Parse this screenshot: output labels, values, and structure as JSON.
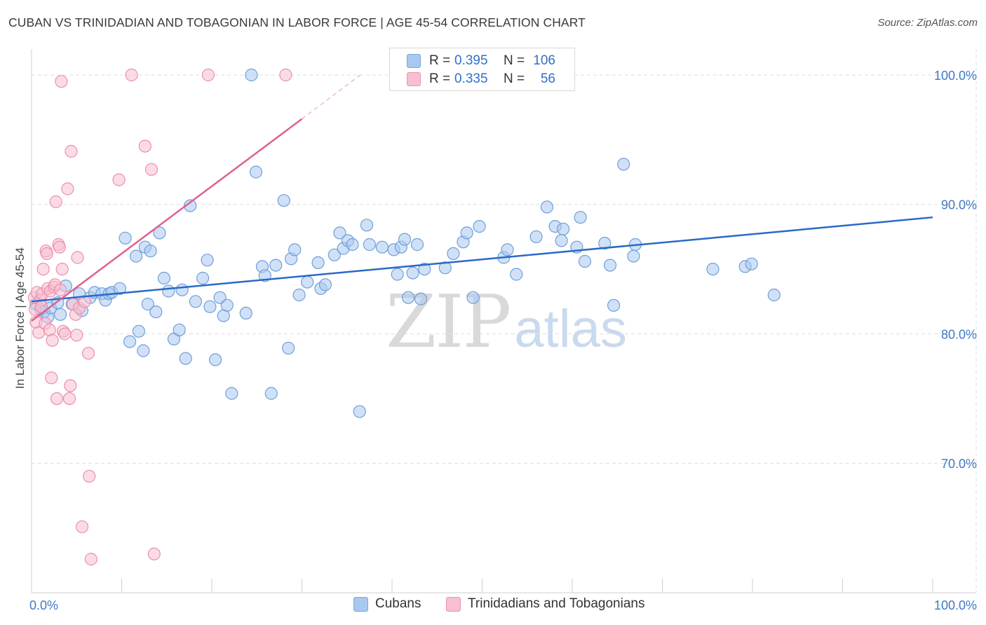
{
  "title": "CUBAN VS TRINIDADIAN AND TOBAGONIAN IN LABOR FORCE | AGE 45-54 CORRELATION CHART",
  "source": "Source: ZipAtlas.com",
  "watermark": {
    "zip": "ZIP",
    "atlas": "atlas"
  },
  "stats": [
    {
      "r_label": "R =",
      "r_value": "0.395",
      "n_label": "N =",
      "n_value": "106",
      "color": "#a9c8f0",
      "border": "#7aa6dd"
    },
    {
      "r_label": "R =",
      "r_value": "0.335",
      "n_label": "N =",
      "n_value": "56",
      "color": "#f7bfd0",
      "border": "#eb94b1"
    }
  ],
  "colors": {
    "blue_fill": "#a9c8f0",
    "blue_edge": "#6f9fd8",
    "blue_line": "#2a6ac6",
    "pink_fill": "#f7bfd0",
    "pink_edge": "#ea8fae",
    "pink_line": "#e0608e",
    "grid": "#dedede",
    "tick_text": "#3f78c8"
  },
  "chart_data": {
    "type": "scatter",
    "title": "CUBAN VS TRINIDADIAN AND TOBAGONIAN IN LABOR FORCE | AGE 45-54 CORRELATION CHART",
    "xlabel": "",
    "ylabel": "In Labor Force | Age 45-54",
    "xlim": [
      0,
      100
    ],
    "ylim": [
      60,
      102
    ],
    "x_tick_labels": [
      "0.0%",
      "100.0%"
    ],
    "y_ticks": [
      70,
      80,
      90,
      100
    ],
    "y_tick_labels": [
      "70.0%",
      "80.0%",
      "90.0%",
      "100.0%"
    ],
    "grid": true,
    "legend": "bottom-center",
    "series": [
      {
        "name": "Cubans",
        "points": [
          [
            0.5,
            82.3
          ],
          [
            1.0,
            81.9
          ],
          [
            1.4,
            81.7
          ],
          [
            1.8,
            81.3
          ],
          [
            2.1,
            82.0
          ],
          [
            2.9,
            82.4
          ],
          [
            3.2,
            81.5
          ],
          [
            3.8,
            83.7
          ],
          [
            4.5,
            82.3
          ],
          [
            5.6,
            81.8
          ],
          [
            5.3,
            83.1
          ],
          [
            6.5,
            82.8
          ],
          [
            7.0,
            83.2
          ],
          [
            7.8,
            83.1
          ],
          [
            8.2,
            82.6
          ],
          [
            8.6,
            83.1
          ],
          [
            8.9,
            83.2
          ],
          [
            9.8,
            83.5
          ],
          [
            10.4,
            87.4
          ],
          [
            10.9,
            79.4
          ],
          [
            11.6,
            86.0
          ],
          [
            11.9,
            80.2
          ],
          [
            12.4,
            78.7
          ],
          [
            12.6,
            86.7
          ],
          [
            12.9,
            82.3
          ],
          [
            13.2,
            86.4
          ],
          [
            13.8,
            81.7
          ],
          [
            14.2,
            87.8
          ],
          [
            14.7,
            84.3
          ],
          [
            15.2,
            83.3
          ],
          [
            15.8,
            79.6
          ],
          [
            16.4,
            80.3
          ],
          [
            16.7,
            83.4
          ],
          [
            17.1,
            78.1
          ],
          [
            17.6,
            89.9
          ],
          [
            18.2,
            82.5
          ],
          [
            19.0,
            84.3
          ],
          [
            19.5,
            85.7
          ],
          [
            19.8,
            82.1
          ],
          [
            20.4,
            78.0
          ],
          [
            20.9,
            82.8
          ],
          [
            21.3,
            81.4
          ],
          [
            21.7,
            82.2
          ],
          [
            22.2,
            75.4
          ],
          [
            23.8,
            81.6
          ],
          [
            24.4,
            100.0
          ],
          [
            24.9,
            92.5
          ],
          [
            25.6,
            85.2
          ],
          [
            25.9,
            84.5
          ],
          [
            26.6,
            75.4
          ],
          [
            27.1,
            85.3
          ],
          [
            28.0,
            90.3
          ],
          [
            28.5,
            78.9
          ],
          [
            28.8,
            85.8
          ],
          [
            29.2,
            86.5
          ],
          [
            29.7,
            83.0
          ],
          [
            30.6,
            84.0
          ],
          [
            31.8,
            85.5
          ],
          [
            32.1,
            83.5
          ],
          [
            32.6,
            83.8
          ],
          [
            33.6,
            86.1
          ],
          [
            34.2,
            87.8
          ],
          [
            34.6,
            86.6
          ],
          [
            35.1,
            87.2
          ],
          [
            35.6,
            86.9
          ],
          [
            36.4,
            74.0
          ],
          [
            37.2,
            88.4
          ],
          [
            37.5,
            86.9
          ],
          [
            38.9,
            86.7
          ],
          [
            40.2,
            86.5
          ],
          [
            40.6,
            84.6
          ],
          [
            41.0,
            86.7
          ],
          [
            41.4,
            87.3
          ],
          [
            41.8,
            82.8
          ],
          [
            42.3,
            84.7
          ],
          [
            42.8,
            86.9
          ],
          [
            43.2,
            82.7
          ],
          [
            43.6,
            85.0
          ],
          [
            45.9,
            85.1
          ],
          [
            46.8,
            86.2
          ],
          [
            47.9,
            87.1
          ],
          [
            48.3,
            87.8
          ],
          [
            49.0,
            82.8
          ],
          [
            49.7,
            88.3
          ],
          [
            52.4,
            85.9
          ],
          [
            52.8,
            86.5
          ],
          [
            53.8,
            84.6
          ],
          [
            56.0,
            87.5
          ],
          [
            57.2,
            89.8
          ],
          [
            58.1,
            88.3
          ],
          [
            58.8,
            87.2
          ],
          [
            59.0,
            88.1
          ],
          [
            60.5,
            86.7
          ],
          [
            60.9,
            89.0
          ],
          [
            61.4,
            85.6
          ],
          [
            63.6,
            87.0
          ],
          [
            64.2,
            85.3
          ],
          [
            64.6,
            82.2
          ],
          [
            65.7,
            93.1
          ],
          [
            66.8,
            86.0
          ],
          [
            67.0,
            86.9
          ],
          [
            75.6,
            85.0
          ],
          [
            79.2,
            85.2
          ],
          [
            79.9,
            85.4
          ],
          [
            82.4,
            83.0
          ]
        ]
      },
      {
        "name": "Trinidadians and Tobagonians",
        "points": [
          [
            0.3,
            82.8
          ],
          [
            0.4,
            81.9
          ],
          [
            0.5,
            80.9
          ],
          [
            0.6,
            83.2
          ],
          [
            0.8,
            80.1
          ],
          [
            1.0,
            82.6
          ],
          [
            1.1,
            82.1
          ],
          [
            1.2,
            83.1
          ],
          [
            1.3,
            85.0
          ],
          [
            1.5,
            80.8
          ],
          [
            1.6,
            86.4
          ],
          [
            1.7,
            86.2
          ],
          [
            1.8,
            83.5
          ],
          [
            2.0,
            80.3
          ],
          [
            2.1,
            83.3
          ],
          [
            2.2,
            76.6
          ],
          [
            2.3,
            79.5
          ],
          [
            2.5,
            83.6
          ],
          [
            2.6,
            83.8
          ],
          [
            2.7,
            90.2
          ],
          [
            2.8,
            75.0
          ],
          [
            3.0,
            86.9
          ],
          [
            3.1,
            86.7
          ],
          [
            3.2,
            83.4
          ],
          [
            3.3,
            99.5
          ],
          [
            3.4,
            85.0
          ],
          [
            3.5,
            80.2
          ],
          [
            3.7,
            80.0
          ],
          [
            4.0,
            91.2
          ],
          [
            4.2,
            75.0
          ],
          [
            4.3,
            76.0
          ],
          [
            4.4,
            94.1
          ],
          [
            4.6,
            82.3
          ],
          [
            4.9,
            81.5
          ],
          [
            5.0,
            79.9
          ],
          [
            5.1,
            85.9
          ],
          [
            5.3,
            82.0
          ],
          [
            5.6,
            65.1
          ],
          [
            5.9,
            82.5
          ],
          [
            6.3,
            78.5
          ],
          [
            6.4,
            69.0
          ],
          [
            6.6,
            62.6
          ],
          [
            9.7,
            91.9
          ],
          [
            11.1,
            100.0
          ],
          [
            12.6,
            94.5
          ],
          [
            13.3,
            92.7
          ],
          [
            13.6,
            63.0
          ],
          [
            19.6,
            100.0
          ],
          [
            28.2,
            100.0
          ]
        ]
      }
    ],
    "trend_lines": [
      {
        "series": "Cubans",
        "x": [
          0,
          100
        ],
        "y": [
          82.5,
          89.0
        ]
      },
      {
        "series": "Trinidadians and Tobagonians",
        "x": [
          0,
          30
        ],
        "y": [
          81.0,
          96.6
        ],
        "dashed_extension_x": [
          30,
          36.5
        ],
        "dashed_extension_y": [
          96.6,
          100.0
        ]
      }
    ]
  }
}
